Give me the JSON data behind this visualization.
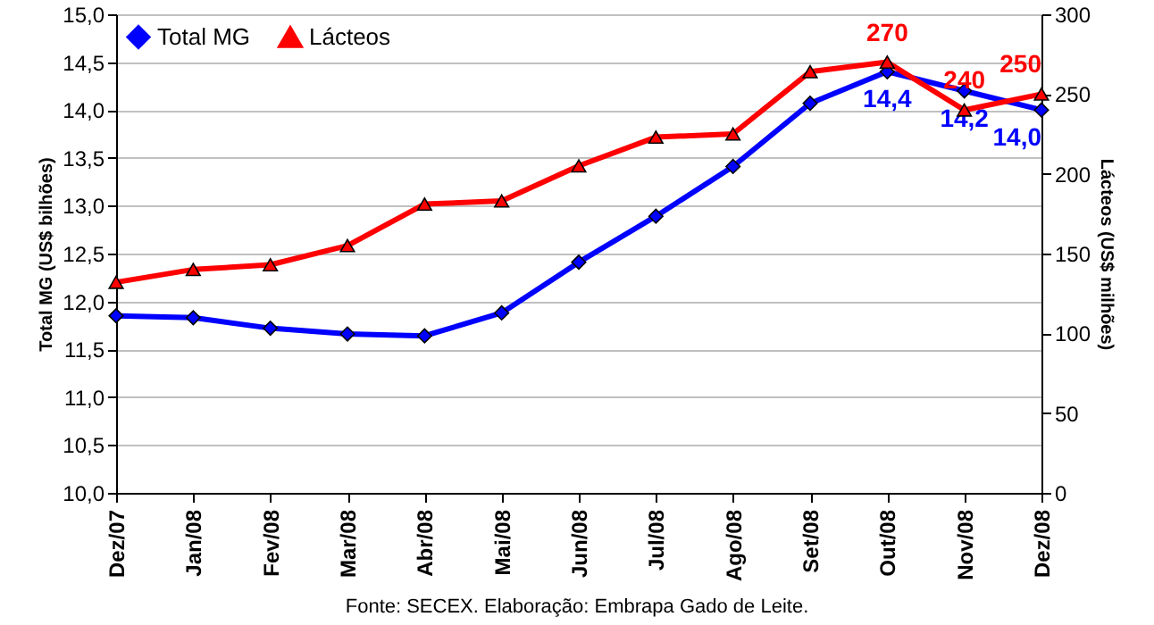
{
  "chart_data": {
    "type": "line",
    "ylabel": "Total MG (US$ bilhões)",
    "y2label": "Lácteos (US$ milhões)",
    "categories": [
      "Dez/07",
      "Jan/08",
      "Fev/08",
      "Mar/08",
      "Abr/08",
      "Mai/08",
      "Jun/08",
      "Jul/08",
      "Ago/08",
      "Set/08",
      "Out/08",
      "Nov/08",
      "Dez/08"
    ],
    "series": [
      {
        "name": "Total MG",
        "color": "#0000ff",
        "marker": "diamond",
        "values": [
          11.85,
          11.83,
          11.72,
          11.66,
          11.64,
          11.88,
          12.41,
          12.89,
          13.41,
          14.07,
          14.4,
          14.2,
          14.0
        ],
        "value_labels": [
          null,
          null,
          null,
          null,
          null,
          null,
          null,
          null,
          null,
          null,
          "14,4",
          "14,2",
          "14,0"
        ]
      },
      {
        "name": "Lácteos",
        "color": "#ff0000",
        "marker": "triangle",
        "axis": "y2",
        "values": [
          132,
          140,
          143,
          155,
          181,
          183,
          205,
          223,
          225,
          264,
          270,
          240,
          250
        ],
        "value_labels": [
          null,
          null,
          null,
          null,
          null,
          null,
          null,
          null,
          null,
          null,
          "270",
          "240",
          "250"
        ]
      }
    ],
    "ylim": [
      10,
      15
    ],
    "yticks": [
      {
        "value": 10,
        "label": "10,0"
      },
      {
        "value": 10.5,
        "label": "10,5"
      },
      {
        "value": 11,
        "label": "11,0"
      },
      {
        "value": 11.5,
        "label": "11,5"
      },
      {
        "value": 12,
        "label": "12,0"
      },
      {
        "value": 12.5,
        "label": "12,5"
      },
      {
        "value": 13,
        "label": "13,0"
      },
      {
        "value": 13.5,
        "label": "13,5"
      },
      {
        "value": 14,
        "label": "14,0"
      },
      {
        "value": 14.5,
        "label": "14,5"
      },
      {
        "value": 15,
        "label": "15,0"
      }
    ],
    "y2lim": [
      0,
      300
    ],
    "y2ticks": [
      0,
      50,
      100,
      150,
      200,
      250,
      300
    ],
    "grid": "y",
    "legend": "top left",
    "line_style": "solid",
    "annotations": [
      "Fonte: SECEX. Elaboração: Embrapa Gado de Leite."
    ]
  }
}
